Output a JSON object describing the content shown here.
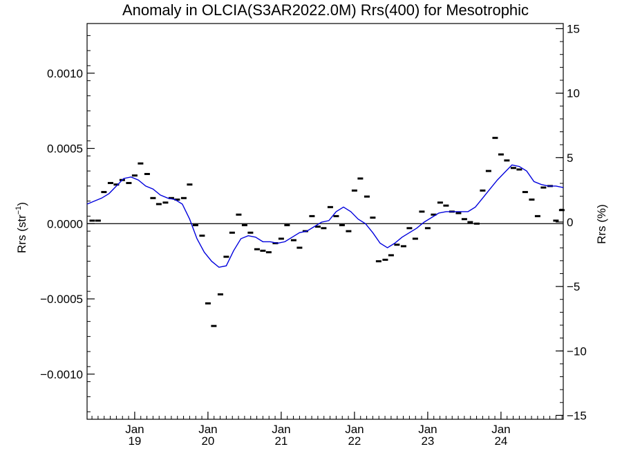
{
  "chart_data": {
    "type": "scatter",
    "title": "Anomaly in OLCIA(S3AR2022.0M) Rrs(400) for Mesotrophic",
    "ylabel_left_main": "Rrs (str",
    "ylabel_left_sup": "−1",
    "ylabel_left_end": ")",
    "ylabel_right": "Rrs (%)",
    "x_range": [
      2018.35,
      2024.85
    ],
    "ylim_left": [
      -0.0013,
      0.00133
    ],
    "ylim_right": [
      -15.3,
      15.4
    ],
    "left_ticks": [
      {
        "value": 0.001,
        "label": "0.0010"
      },
      {
        "value": 0.0005,
        "label": "0.0005"
      },
      {
        "value": 0.0,
        "label": "0.0000"
      },
      {
        "value": -0.0005,
        "label": "−0.0005"
      },
      {
        "value": -0.001,
        "label": "−0.0010"
      }
    ],
    "right_ticks": [
      {
        "value": 15,
        "label": "15"
      },
      {
        "value": 10,
        "label": "10"
      },
      {
        "value": 5,
        "label": "5"
      },
      {
        "value": 0,
        "label": "0"
      },
      {
        "value": -5,
        "label": "−5"
      },
      {
        "value": -10,
        "label": "−10"
      },
      {
        "value": -15,
        "label": "−15"
      }
    ],
    "x_ticks": [
      {
        "value": 2019.0,
        "month": "Jan",
        "year": "19"
      },
      {
        "value": 2020.0,
        "month": "Jan",
        "year": "20"
      },
      {
        "value": 2021.0,
        "month": "Jan",
        "year": "21"
      },
      {
        "value": 2022.0,
        "month": "Jan",
        "year": "22"
      },
      {
        "value": 2023.0,
        "month": "Jan",
        "year": "23"
      },
      {
        "value": 2024.0,
        "month": "Jan",
        "year": "24"
      }
    ],
    "zero_line": 0,
    "series": [
      {
        "kind": "monthly_anomaly_points",
        "color": "#000000",
        "x": [
          2018.42,
          2018.5,
          2018.58,
          2018.67,
          2018.75,
          2018.83,
          2018.92,
          2019.0,
          2019.08,
          2019.17,
          2019.25,
          2019.33,
          2019.42,
          2019.5,
          2019.58,
          2019.67,
          2019.75,
          2019.83,
          2019.92,
          2020.0,
          2020.08,
          2020.17,
          2020.25,
          2020.33,
          2020.42,
          2020.5,
          2020.58,
          2020.67,
          2020.75,
          2020.83,
          2020.92,
          2021.0,
          2021.08,
          2021.17,
          2021.25,
          2021.33,
          2021.42,
          2021.5,
          2021.58,
          2021.67,
          2021.75,
          2021.83,
          2021.92,
          2022.0,
          2022.08,
          2022.17,
          2022.25,
          2022.33,
          2022.42,
          2022.5,
          2022.58,
          2022.67,
          2022.75,
          2022.83,
          2022.92,
          2023.0,
          2023.08,
          2023.17,
          2023.25,
          2023.33,
          2023.42,
          2023.5,
          2023.58,
          2023.67,
          2023.75,
          2023.83,
          2023.92,
          2024.0,
          2024.08,
          2024.17,
          2024.25,
          2024.33,
          2024.42,
          2024.5,
          2024.58,
          2024.67,
          2024.75,
          2024.83
        ],
        "y": [
          2e-05,
          2e-05,
          0.00021,
          0.00027,
          0.00026,
          0.00029,
          0.00027,
          0.00032,
          0.0004,
          0.00033,
          0.00017,
          0.00013,
          0.00014,
          0.00017,
          0.00016,
          0.00017,
          0.00026,
          -1e-05,
          -8e-05,
          -0.00053,
          -0.00068,
          -0.00047,
          -0.00022,
          -6e-05,
          6e-05,
          -1e-05,
          -6e-05,
          -0.00017,
          -0.00018,
          -0.00019,
          -0.00013,
          -0.0001,
          -1e-05,
          -0.00011,
          -0.00016,
          -5e-05,
          5e-05,
          -2e-05,
          -3e-05,
          0.00011,
          5e-05,
          -1e-05,
          -5e-05,
          0.00022,
          0.0003,
          0.00018,
          4e-05,
          -0.00025,
          -0.00024,
          -0.00021,
          -0.00014,
          -0.00015,
          -3e-05,
          -0.0001,
          8e-05,
          -3e-05,
          6e-05,
          0.00014,
          0.00012,
          8e-05,
          7e-05,
          3e-05,
          1e-05,
          0.0,
          0.00022,
          0.00035,
          0.00057,
          0.00046,
          0.00042,
          0.00037,
          0.00036,
          0.00021,
          0.00016,
          5e-05,
          0.00024,
          0.00025,
          2e-05,
          9e-05
        ]
      },
      {
        "kind": "running_mean_line",
        "color": "#0000dd",
        "x": [
          2018.35,
          2018.45,
          2018.55,
          2018.65,
          2018.75,
          2018.85,
          2018.95,
          2019.05,
          2019.15,
          2019.25,
          2019.35,
          2019.45,
          2019.55,
          2019.65,
          2019.75,
          2019.85,
          2019.95,
          2020.05,
          2020.15,
          2020.25,
          2020.35,
          2020.45,
          2020.55,
          2020.65,
          2020.75,
          2020.85,
          2020.95,
          2021.05,
          2021.15,
          2021.25,
          2021.35,
          2021.45,
          2021.55,
          2021.65,
          2021.75,
          2021.85,
          2021.95,
          2022.05,
          2022.15,
          2022.25,
          2022.35,
          2022.45,
          2022.55,
          2022.65,
          2022.75,
          2022.85,
          2022.95,
          2023.05,
          2023.15,
          2023.25,
          2023.35,
          2023.45,
          2023.55,
          2023.65,
          2023.75,
          2023.85,
          2023.95,
          2024.05,
          2024.15,
          2024.25,
          2024.35,
          2024.45,
          2024.55,
          2024.65,
          2024.75,
          2024.85
        ],
        "y": [
          0.00013,
          0.00015,
          0.00017,
          0.0002,
          0.00025,
          0.0003,
          0.00031,
          0.00029,
          0.00025,
          0.00023,
          0.00019,
          0.00017,
          0.00016,
          0.00013,
          3e-05,
          -0.0001,
          -0.00019,
          -0.00025,
          -0.00029,
          -0.00028,
          -0.00018,
          -0.0001,
          -8e-05,
          -9e-05,
          -0.00012,
          -0.00012,
          -0.00013,
          -0.00012,
          -9e-05,
          -6e-05,
          -5e-05,
          -2e-05,
          1e-05,
          2e-05,
          8e-05,
          0.00011,
          8e-05,
          3e-05,
          0.0,
          -6e-05,
          -0.00013,
          -0.00016,
          -0.00013,
          -9e-05,
          -6e-05,
          -3e-05,
          1e-05,
          4e-05,
          7e-05,
          8e-05,
          8e-05,
          8e-05,
          8e-05,
          0.00011,
          0.00017,
          0.00023,
          0.00029,
          0.00034,
          0.00039,
          0.00038,
          0.00035,
          0.00028,
          0.00026,
          0.00025,
          0.00025,
          0.00024
        ]
      }
    ]
  }
}
